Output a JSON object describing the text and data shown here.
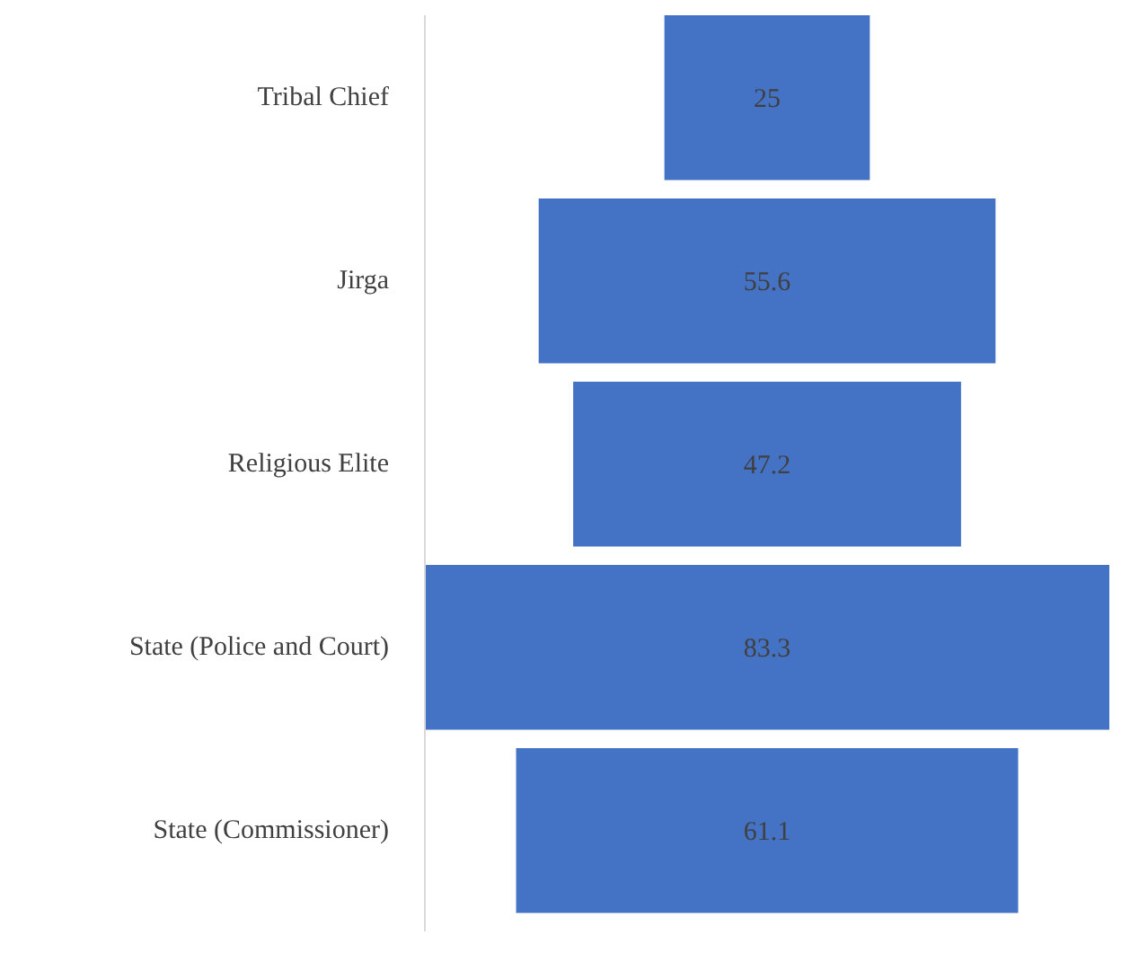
{
  "chart_data": {
    "type": "other",
    "categories": [
      "Tribal Chief",
      "Jirga",
      "Religious Elite",
      "State (Police and Court)",
      "State (Commissioner)"
    ],
    "values": [
      25,
      55.6,
      47.2,
      83.3,
      61.1
    ],
    "color": "#4472c4",
    "data_labels": true
  }
}
